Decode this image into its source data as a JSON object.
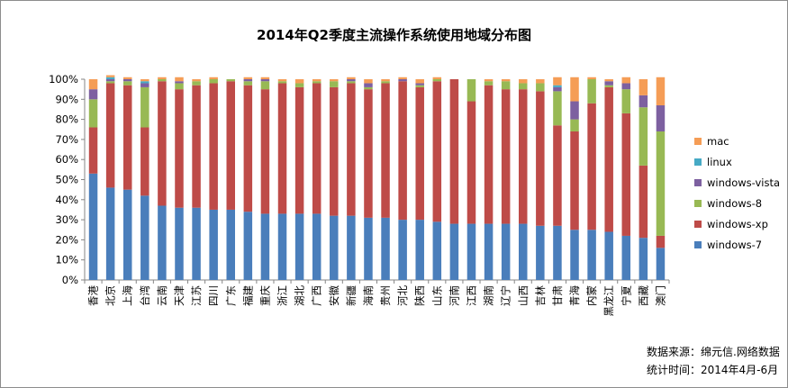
{
  "chart_data": {
    "type": "bar",
    "stacked": true,
    "title": "2014年Q2季度主流操作系统使用地域分布图",
    "ylim": [
      0,
      100
    ],
    "y_ticks": [
      "0%",
      "10%",
      "20%",
      "30%",
      "40%",
      "50%",
      "60%",
      "70%",
      "80%",
      "90%",
      "100%"
    ],
    "grid": false,
    "legend_position": "right",
    "categories": [
      "香港",
      "北京",
      "上海",
      "台湾",
      "云南",
      "天津",
      "江苏",
      "四川",
      "广东",
      "福建",
      "重庆",
      "浙江",
      "湖北",
      "广西",
      "安徽",
      "新疆",
      "海南",
      "贵州",
      "河北",
      "陕西",
      "山东",
      "河南",
      "江西",
      "湖南",
      "辽宁",
      "山西",
      "吉林",
      "甘肃",
      "青海",
      "内蒙",
      "黑龙江",
      "宁夏",
      "西藏",
      "澳门"
    ],
    "series": [
      {
        "name": "windows-7",
        "color": "#4a7ebb",
        "values": [
          53,
          46,
          45,
          42,
          37,
          36,
          36,
          35,
          35,
          34,
          33,
          33,
          33,
          33,
          32,
          32,
          31,
          31,
          30,
          30,
          29,
          28,
          28,
          28,
          28,
          28,
          27,
          27,
          25,
          25,
          24,
          22,
          21,
          16
        ]
      },
      {
        "name": "windows-xp",
        "color": "#be4b48",
        "values": [
          23,
          52,
          52,
          34,
          62,
          59,
          61,
          63,
          64,
          63,
          62,
          65,
          63,
          65,
          64,
          66,
          64,
          67,
          69,
          66,
          70,
          72,
          61,
          69,
          67,
          67,
          67,
          50,
          49,
          63,
          72,
          61,
          36,
          6
        ]
      },
      {
        "name": "windows-8",
        "color": "#98b954",
        "values": [
          14,
          1,
          2,
          20,
          1,
          3,
          2,
          2,
          1,
          2,
          4,
          1,
          2,
          1,
          3,
          1,
          1,
          1,
          0,
          1,
          1,
          0,
          11,
          2,
          4,
          3,
          4,
          17,
          6,
          12,
          1,
          12,
          29,
          52
        ]
      },
      {
        "name": "windows-vista",
        "color": "#7d60a0",
        "values": [
          5,
          1,
          1,
          2,
          0,
          1,
          0,
          0,
          0,
          1,
          1,
          0,
          0,
          0,
          0,
          1,
          2,
          0,
          1,
          1,
          0,
          0,
          0,
          0,
          0,
          0,
          0,
          2,
          9,
          0,
          2,
          3,
          6,
          13
        ]
      },
      {
        "name": "linux",
        "color": "#46aac5",
        "values": [
          0,
          1,
          0,
          1,
          0,
          0,
          0,
          0,
          0,
          0,
          0,
          0,
          0,
          0,
          0,
          0,
          0,
          0,
          0,
          0,
          0,
          0,
          0,
          0,
          0,
          0,
          0,
          1,
          0,
          0,
          0,
          0,
          0,
          0
        ]
      },
      {
        "name": "mac",
        "color": "#f59d56",
        "values": [
          5,
          1,
          1,
          1,
          1,
          2,
          1,
          1,
          0,
          1,
          1,
          1,
          2,
          1,
          1,
          1,
          2,
          1,
          1,
          2,
          1,
          0,
          0,
          1,
          1,
          2,
          2,
          4,
          12,
          1,
          1,
          3,
          8,
          14
        ]
      }
    ]
  },
  "source": {
    "line1": "数据来源：绵元信.网络数据",
    "line2": "统计时间：2014年4月-6月"
  }
}
